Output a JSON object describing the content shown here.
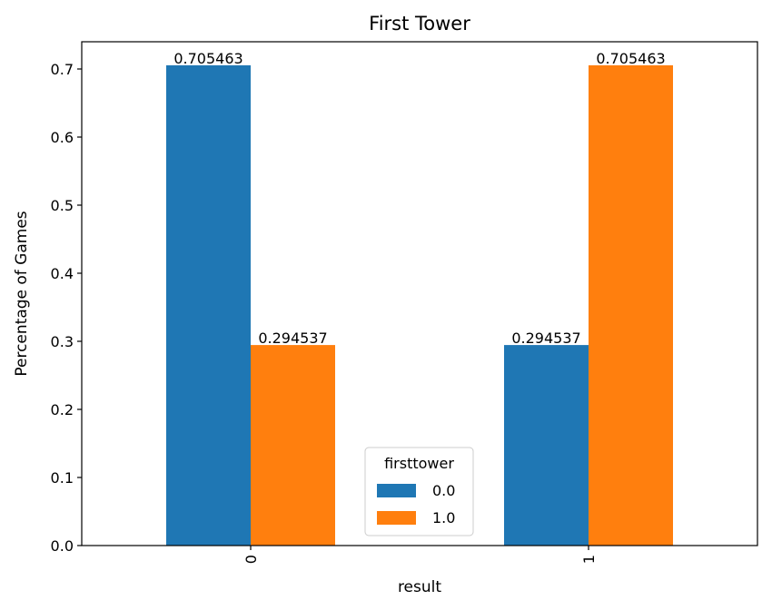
{
  "chart_data": {
    "type": "bar",
    "title": "First Tower",
    "xlabel": "result",
    "ylabel": "Percentage of Games",
    "categories": [
      "0",
      "1"
    ],
    "series": [
      {
        "name": "0.0",
        "color": "#1f77b4",
        "values": [
          0.705463,
          0.294537
        ],
        "labels": [
          "0.705463",
          "0.294537"
        ]
      },
      {
        "name": "1.0",
        "color": "#ff7f0e",
        "values": [
          0.294537,
          0.705463
        ],
        "labels": [
          "0.294537",
          "0.705463"
        ]
      }
    ],
    "ylim": [
      0,
      0.74
    ],
    "yticks": [
      "0.0",
      "0.1",
      "0.2",
      "0.3",
      "0.4",
      "0.5",
      "0.6",
      "0.7"
    ],
    "grid": false,
    "legend": {
      "title": "firsttower",
      "placement": "lower center"
    }
  }
}
